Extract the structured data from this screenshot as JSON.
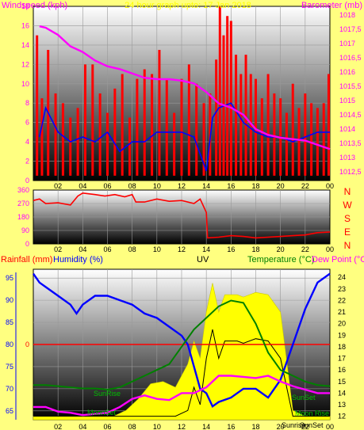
{
  "header": {
    "windspeed_label": "Windspeed (kph)",
    "date_label": "24 hour graph upto: 17 Jan 2018",
    "barometer_label": "Barometer (mb)"
  },
  "colors": {
    "background": "#ffff80",
    "windspeed": "#ff0000",
    "gust_bars": "#ff0000",
    "wind_avg": "#0000ff",
    "barometer": "#ff00ff",
    "wind_direction": "#ff0000",
    "humidity": "#0000ff",
    "uv_fill": "#ffff00",
    "uv_line": "#000000",
    "temperature": "#008000",
    "dew_point": "#ff00ff",
    "solar_fill": "#ffff00",
    "rain_line": "#ff0000",
    "annotations": "#00c000",
    "axis_magenta": "#ff00ff",
    "axis_blue": "#0000ff",
    "axis_green": "#008000"
  },
  "chart_data": [
    {
      "type": "line",
      "panel": "wind-pressure",
      "title": "24 hour graph upto: 17 Jan 2018",
      "x_ticks": [
        "02",
        "04",
        "06",
        "08",
        "10",
        "12",
        "14",
        "16",
        "18",
        "20",
        "22",
        "00"
      ],
      "left_axis": {
        "label": "Windspeed (kph)",
        "ylim": [
          0,
          18
        ],
        "ticks": [
          "0",
          "2",
          "4",
          "6",
          "8",
          "10",
          "12",
          "14",
          "16",
          "18"
        ]
      },
      "right_axis": {
        "label": "Barometer (mb)",
        "ylim": [
          1012.2,
          1018.3
        ],
        "ticks": [
          "1012,5",
          "1013",
          "1013,5",
          "1014",
          "1014,5",
          "1015",
          "1015,5",
          "1016",
          "1016,5",
          "1017",
          "1017,5",
          "1018"
        ]
      },
      "grid": true,
      "series": [
        {
          "axis": "right",
          "style": "line",
          "x": [
            0.5,
            1,
            2,
            3,
            4,
            5,
            6,
            7,
            8,
            9,
            10,
            11,
            12,
            13,
            14,
            15,
            16,
            17,
            18,
            19,
            20,
            21,
            22,
            23,
            24
          ],
          "values": [
            1017.6,
            1017.55,
            1017.3,
            1016.9,
            1016.7,
            1016.4,
            1016.2,
            1016.1,
            1015.95,
            1015.8,
            1015.75,
            1015.75,
            1015.7,
            1015.6,
            1015.3,
            1014.9,
            1014.75,
            1014.5,
            1014.0,
            1013.8,
            1013.7,
            1013.65,
            1013.6,
            1013.45,
            1013.3
          ]
        },
        {
          "axis": "left",
          "style": "line",
          "x": [
            0.5,
            1,
            2,
            3,
            4,
            5,
            6,
            7,
            8,
            9,
            10,
            11,
            12,
            13,
            14,
            14.5,
            15,
            16,
            17,
            18,
            19,
            20,
            21,
            22,
            23,
            24
          ],
          "values": [
            4.5,
            7.5,
            5,
            4,
            4.5,
            4,
            5,
            3,
            4,
            4,
            5,
            5,
            5,
            4.5,
            1,
            6.5,
            7.5,
            8,
            6,
            5,
            4.5,
            4.5,
            4,
            4.5,
            5,
            5
          ]
        },
        {
          "axis": "left",
          "style": "bars",
          "x": [
            0.3,
            0.7,
            1.2,
            1.8,
            2.4,
            3.0,
            3.6,
            4.2,
            4.8,
            5.4,
            6.0,
            6.6,
            7.2,
            7.8,
            8.4,
            9.0,
            9.6,
            10.2,
            10.8,
            11.4,
            12.0,
            12.6,
            13.2,
            13.8,
            14.3,
            14.8,
            15.1,
            15.4,
            15.7,
            16.0,
            16.4,
            16.8,
            17.2,
            17.6,
            18.0,
            18.5,
            19.0,
            19.5,
            20.0,
            20.5,
            21.0,
            21.5,
            22.0,
            22.5,
            23.0,
            23.5,
            23.9
          ],
          "values": [
            15,
            8.5,
            13.5,
            9,
            8,
            6.5,
            7.5,
            12,
            12,
            9,
            7,
            9.5,
            11,
            6.5,
            10.5,
            11.5,
            11,
            13.5,
            10.5,
            7,
            10.5,
            12,
            10,
            8,
            9,
            12.5,
            18,
            15,
            17,
            16.5,
            13,
            11,
            13,
            11,
            10.5,
            8.5,
            11,
            9,
            8.5,
            7,
            10,
            7.5,
            9,
            8,
            7.5,
            8,
            11
          ]
        }
      ]
    },
    {
      "type": "line",
      "panel": "wind-direction",
      "x_ticks": [
        "02",
        "04",
        "06",
        "08",
        "10",
        "12",
        "14",
        "16",
        "18",
        "20",
        "22",
        "00"
      ],
      "left_axis": {
        "ylim": [
          0,
          360
        ],
        "ticks": [
          "0",
          "90",
          "180",
          "270",
          "360"
        ]
      },
      "right_axis": {
        "ticks": [
          "N",
          "W",
          "S",
          "E",
          "N"
        ]
      },
      "grid": true,
      "series": [
        {
          "x": [
            0,
            0.5,
            1,
            2,
            3,
            3.6,
            4,
            5,
            5.8,
            6.6,
            7.4,
            8.0,
            8.3,
            9.0,
            10,
            11,
            12,
            13,
            13.5,
            14,
            14.1,
            15,
            16,
            17,
            18,
            19,
            20,
            21,
            22,
            23,
            24
          ],
          "values": [
            290,
            300,
            270,
            275,
            260,
            320,
            340,
            330,
            320,
            330,
            315,
            330,
            280,
            280,
            300,
            285,
            290,
            270,
            300,
            210,
            40,
            45,
            55,
            50,
            40,
            45,
            50,
            55,
            60,
            75,
            80
          ]
        }
      ]
    },
    {
      "type": "line",
      "panel": "rain-humidity-uv-temperature",
      "x_ticks": [
        "02",
        "04",
        "06",
        "08",
        "10",
        "12",
        "14",
        "16",
        "18",
        "20",
        "22",
        "00"
      ],
      "labels": [
        "Rainfall (mm)",
        "Humidity (%)",
        "UV",
        "Temperature (°C)",
        "Dew Point (°C)"
      ],
      "humidity_axis": {
        "ylim": [
          63,
          97
        ],
        "ticks": [
          "65",
          "70",
          "75",
          "80",
          "85",
          "90",
          "95"
        ]
      },
      "rain_axis": {
        "ticks": [
          "0"
        ]
      },
      "temperature_axis": {
        "ylim": [
          11.7,
          24.7
        ],
        "ticks": [
          "12",
          "13",
          "14",
          "15",
          "16",
          "17",
          "18",
          "19",
          "20",
          "21",
          "22",
          "23",
          "24"
        ]
      },
      "annotations": [
        "SunRise",
        "SunSet",
        "MoonSet",
        "Moon Rise",
        "Sunrise",
        "SunSet"
      ],
      "grid": true,
      "series": [
        {
          "name": "Humidity (%)",
          "axis": "humidity",
          "x": [
            0,
            0.5,
            1,
            2,
            3,
            3.5,
            4,
            5,
            6,
            7,
            8,
            9,
            10,
            11,
            12,
            12.5,
            13,
            13.5,
            14,
            14.5,
            15,
            16,
            17,
            18,
            19,
            20,
            21,
            22,
            23,
            24
          ],
          "values": [
            96,
            94,
            93,
            91,
            89,
            87,
            89,
            91,
            91,
            90,
            89,
            87,
            86,
            84,
            82,
            80,
            75,
            70,
            69,
            66,
            67,
            68,
            70,
            70,
            68,
            72,
            80,
            88,
            94,
            96
          ]
        },
        {
          "name": "Temperature (°C)",
          "axis": "temperature",
          "x": [
            0,
            1,
            2,
            3,
            4,
            5,
            6,
            7,
            8,
            9,
            10,
            11,
            12,
            13,
            14,
            15,
            16,
            17,
            18,
            19,
            20,
            21,
            22,
            23,
            24
          ],
          "values": [
            14.7,
            14.7,
            14.6,
            14.5,
            14.4,
            14.4,
            14.3,
            14.5,
            15.0,
            15.5,
            16.0,
            16.5,
            18.0,
            19.5,
            20.5,
            21.5,
            22.0,
            21.8,
            20.0,
            17.5,
            16.0,
            15.5,
            15.0,
            14.7,
            14.6
          ]
        },
        {
          "name": "Dew Point (°C)",
          "axis": "temperature",
          "x": [
            0,
            1,
            2,
            3,
            4,
            5,
            6,
            7,
            8,
            9,
            10,
            11,
            12,
            13,
            14,
            15,
            16,
            17,
            18,
            19,
            20,
            21,
            22,
            23,
            24
          ],
          "values": [
            12.8,
            12.8,
            12.4,
            12.3,
            12.1,
            12.2,
            12.3,
            12.8,
            13.5,
            13.8,
            13.5,
            13.4,
            14.0,
            14.0,
            14.5,
            15.5,
            15.5,
            15.4,
            15.3,
            15.5,
            15.0,
            14.6,
            14.3,
            14.0,
            14.0
          ]
        },
        {
          "name": "UV",
          "axis": "temperature",
          "style": "area",
          "x": [
            0,
            6.5,
            7.5,
            8.5,
            9.5,
            10.5,
            11.5,
            12.5,
            13,
            13.5,
            14,
            14.5,
            15,
            15.5,
            16,
            16.5,
            17,
            18,
            19,
            20,
            21,
            22,
            24
          ],
          "values": [
            12,
            12,
            12.5,
            13.5,
            14.8,
            15.0,
            14.5,
            16.5,
            18.5,
            17.0,
            21.0,
            23.5,
            21.0,
            22.5,
            22.5,
            22.5,
            22.3,
            22.7,
            22.5,
            21.0,
            12.5,
            12,
            12
          ]
        },
        {
          "name": "Rainfall (mm)",
          "axis": "rain",
          "x": [
            0,
            24
          ],
          "values": [
            0,
            0
          ]
        }
      ]
    }
  ]
}
